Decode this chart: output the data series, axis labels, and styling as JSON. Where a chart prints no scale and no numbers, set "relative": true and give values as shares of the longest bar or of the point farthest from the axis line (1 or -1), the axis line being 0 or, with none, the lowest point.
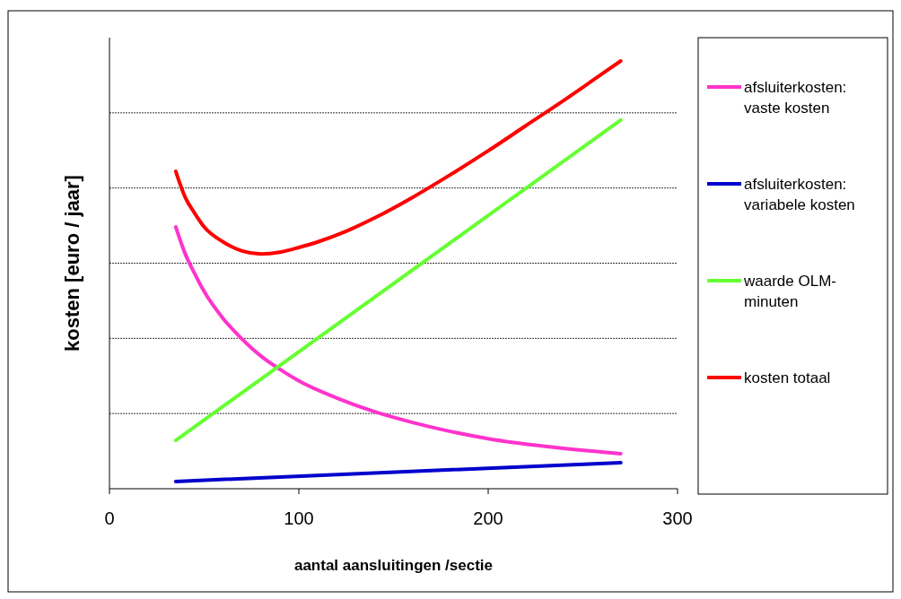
{
  "chart_data": {
    "type": "line",
    "relative": true,
    "xlabel": "aantal aansluitingen /sectie",
    "ylabel": "kosten  [euro / jaar]",
    "xlim": [
      0,
      300
    ],
    "xticks": [
      0,
      100,
      200,
      300
    ],
    "grid": "y",
    "legend": "right",
    "series": [
      {
        "name": "afsluiterkosten: vaste kosten",
        "color": "#ff33cc",
        "x": [
          35,
          40,
          45,
          50,
          60,
          70,
          80,
          90,
          100,
          120,
          140,
          160,
          180,
          200,
          230,
          270
        ],
        "values": [
          0.612,
          0.549,
          0.503,
          0.461,
          0.398,
          0.35,
          0.31,
          0.279,
          0.252,
          0.212,
          0.18,
          0.155,
          0.134,
          0.117,
          0.099,
          0.082
        ]
      },
      {
        "name": "afsluiterkosten: variabele kosten",
        "color": "#0000cc",
        "x": [
          35,
          270
        ],
        "values": [
          0.017,
          0.061
        ]
      },
      {
        "name": "waarde OLM-minuten",
        "color": "#66ff33",
        "x": [
          35,
          270
        ],
        "values": [
          0.113,
          0.862
        ]
      },
      {
        "name": "kosten totaal",
        "color": "#ff0000",
        "x": [
          35,
          40,
          45,
          50,
          60,
          70,
          80,
          90,
          100,
          110,
          125,
          140,
          160,
          180,
          200,
          220,
          240,
          255,
          270
        ],
        "values": [
          0.742,
          0.681,
          0.644,
          0.612,
          0.577,
          0.556,
          0.549,
          0.553,
          0.564,
          0.577,
          0.602,
          0.633,
          0.681,
          0.734,
          0.79,
          0.849,
          0.908,
          0.954,
          1
        ]
      }
    ]
  }
}
